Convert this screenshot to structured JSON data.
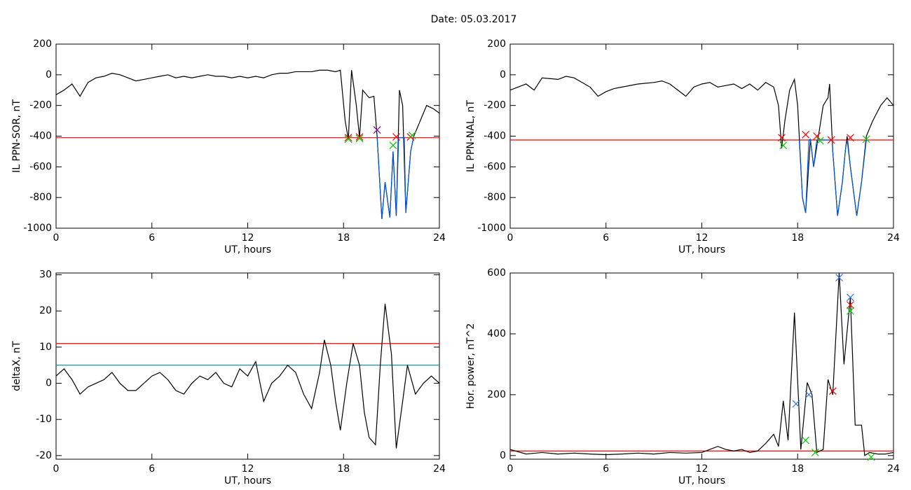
{
  "title": "Date:  05.03.2017",
  "chart_data": [
    {
      "type": "line",
      "xlabel": "UT, hours",
      "ylabel": "IL PPN-SOR, nT",
      "xlim": [
        0,
        24
      ],
      "xticks": [
        0,
        6,
        12,
        18,
        24
      ],
      "ylim": [
        -1000,
        200
      ],
      "yticks": [
        -1000,
        -800,
        -600,
        -400,
        -200,
        0,
        200
      ],
      "series": [
        {
          "color": "#000000",
          "x": [
            0,
            0.5,
            1,
            1.5,
            2,
            2.5,
            3,
            3.5,
            4,
            4.5,
            5,
            5.5,
            6,
            6.5,
            7,
            7.5,
            8,
            8.5,
            9,
            9.5,
            10,
            10.5,
            11,
            11.5,
            12,
            12.5,
            13,
            13.5,
            14,
            14.5,
            15,
            15.5,
            16,
            16.5,
            17,
            17.5,
            17.8,
            18.1,
            18.3,
            18.5,
            18.8,
            19.0,
            19.2,
            19.6,
            19.9,
            20.1,
            20.4,
            20.6,
            20.9,
            21.1,
            21.3,
            21.5,
            21.7,
            21.9,
            22.2,
            22.4,
            22.8,
            23.2,
            23.6,
            24
          ],
          "values": [
            -130,
            -100,
            -60,
            -140,
            -50,
            -20,
            -10,
            10,
            0,
            -20,
            -40,
            -30,
            -20,
            -10,
            0,
            -20,
            -10,
            -20,
            -10,
            0,
            -10,
            -10,
            -20,
            -10,
            -20,
            -10,
            -20,
            0,
            10,
            10,
            20,
            20,
            20,
            30,
            30,
            20,
            30,
            -300,
            -420,
            30,
            -200,
            -410,
            -100,
            -150,
            -140,
            -400,
            -940,
            -700,
            -930,
            -500,
            -920,
            -100,
            -200,
            -900,
            -500,
            -400,
            -300,
            -200,
            -220,
            -250
          ]
        },
        {
          "color": "#0055dd",
          "x": [
            20.1,
            20.4,
            20.6,
            20.9,
            21.1,
            21.3,
            21.45,
            21.8,
            21.9,
            22.2,
            22.4
          ],
          "values": [
            -400,
            -940,
            -700,
            -930,
            -500,
            -920,
            -410,
            -410,
            -900,
            -500,
            -400
          ]
        }
      ],
      "hlines": [
        {
          "value": -410,
          "color": "#ff0000"
        }
      ],
      "markers": [
        {
          "x": 18.3,
          "y": -410,
          "color": "#ff0000"
        },
        {
          "x": 19.0,
          "y": -405,
          "color": "#ff0000"
        },
        {
          "x": 21.3,
          "y": -405,
          "color": "#ff0000"
        },
        {
          "x": 22.2,
          "y": -405,
          "color": "#ff0000"
        },
        {
          "x": 18.3,
          "y": -420,
          "color": "#00cc00"
        },
        {
          "x": 19.0,
          "y": -415,
          "color": "#00cc00"
        },
        {
          "x": 21.1,
          "y": -460,
          "color": "#00cc00"
        },
        {
          "x": 22.3,
          "y": -395,
          "color": "#00cc00"
        },
        {
          "x": 20.1,
          "y": -360,
          "color": "#8800aa"
        }
      ]
    },
    {
      "type": "line",
      "xlabel": "UT, hours",
      "ylabel": "IL PPN-NAL, nT",
      "xlim": [
        0,
        24
      ],
      "xticks": [
        0,
        6,
        12,
        18,
        24
      ],
      "ylim": [
        -1000,
        200
      ],
      "yticks": [
        -1000,
        -800,
        -600,
        -400,
        -200,
        0,
        200
      ],
      "series": [
        {
          "color": "#000000",
          "x": [
            0,
            1,
            1.5,
            2,
            3,
            3.5,
            4,
            4.5,
            5,
            5.5,
            6,
            6.5,
            7,
            8,
            9,
            9.5,
            10,
            10.5,
            11,
            11.5,
            12,
            12.5,
            13,
            13.5,
            14,
            14.5,
            15,
            15.5,
            16,
            16.5,
            16.8,
            17.0,
            17.2,
            17.5,
            17.8,
            18.0,
            18.3,
            18.5,
            18.8,
            19.0,
            19.3,
            19.6,
            19.9,
            20.0,
            20.2,
            20.5,
            20.8,
            21.0,
            21.1,
            21.3,
            21.7,
            22.0,
            22.3,
            22.7,
            23.2,
            23.6,
            24
          ],
          "values": [
            -100,
            -60,
            -100,
            -20,
            -30,
            -10,
            -20,
            -50,
            -80,
            -140,
            -110,
            -90,
            -80,
            -60,
            -50,
            -40,
            -60,
            -100,
            -140,
            -80,
            -60,
            -50,
            -80,
            -70,
            -60,
            -90,
            -60,
            -100,
            -50,
            -80,
            -200,
            -480,
            -300,
            -100,
            -30,
            -200,
            -800,
            -900,
            -420,
            -600,
            -400,
            -200,
            -150,
            -60,
            -500,
            -920,
            -700,
            -480,
            -400,
            -600,
            -920,
            -700,
            -400,
            -300,
            -200,
            -150,
            -200
          ]
        },
        {
          "color": "#0055dd",
          "x": [
            18.1,
            18.3,
            18.5,
            18.7,
            18.8,
            19.0,
            19.2,
            20.15,
            20.2,
            20.5,
            20.8,
            21.0,
            21.1,
            21.3,
            21.7,
            22.0,
            22.3
          ],
          "values": [
            -425,
            -800,
            -900,
            -425,
            -420,
            -600,
            -425,
            -425,
            -500,
            -920,
            -700,
            -480,
            -425,
            -600,
            -920,
            -700,
            -425
          ]
        }
      ],
      "hlines": [
        {
          "value": -425,
          "color": "#ff0000"
        }
      ],
      "markers": [
        {
          "x": 17.0,
          "y": -410,
          "color": "#ff0000"
        },
        {
          "x": 18.5,
          "y": -390,
          "color": "#ff0000"
        },
        {
          "x": 19.2,
          "y": -400,
          "color": "#ff0000"
        },
        {
          "x": 20.1,
          "y": -425,
          "color": "#ff0000"
        },
        {
          "x": 21.3,
          "y": -410,
          "color": "#ff0000"
        },
        {
          "x": 17.1,
          "y": -460,
          "color": "#00cc00"
        },
        {
          "x": 19.4,
          "y": -430,
          "color": "#00cc00"
        },
        {
          "x": 22.3,
          "y": -420,
          "color": "#00cc00"
        }
      ]
    },
    {
      "type": "line",
      "xlabel": "UT, hours",
      "ylabel": "deltaX, nT",
      "xlim": [
        0,
        24
      ],
      "xticks": [
        0,
        6,
        12,
        18,
        24
      ],
      "ylim": [
        -21,
        30.5
      ],
      "yticks": [
        -20,
        -10,
        0,
        10,
        20,
        30
      ],
      "series": [
        {
          "color": "#000000",
          "x": [
            0,
            0.5,
            1,
            1.5,
            2,
            2.5,
            3,
            3.5,
            4,
            4.5,
            5,
            5.5,
            6,
            6.5,
            7,
            7.5,
            8,
            8.5,
            9,
            9.5,
            10,
            10.5,
            11,
            11.5,
            12,
            12.5,
            13,
            13.5,
            14,
            14.5,
            15,
            15.5,
            16,
            16.5,
            16.8,
            17.2,
            17.5,
            17.8,
            18.2,
            18.6,
            19,
            19.3,
            19.6,
            20,
            20.3,
            20.6,
            21,
            21.3,
            21.7,
            22,
            22.5,
            23,
            23.5,
            24
          ],
          "values": [
            2,
            4,
            1,
            -3,
            -1,
            0,
            1,
            3,
            0,
            -2,
            -2,
            0,
            2,
            3,
            1,
            -2,
            -3,
            0,
            2,
            1,
            3,
            0,
            -1,
            4,
            2,
            6,
            -5,
            0,
            2,
            5,
            3,
            -3,
            -7,
            3,
            12,
            5,
            -5,
            -13,
            0,
            11,
            5,
            -8,
            -15,
            -17,
            5,
            22,
            8,
            -18,
            -5,
            5,
            -3,
            0,
            2,
            0
          ]
        }
      ],
      "hlines": [
        {
          "value": 11,
          "color": "#ff0000"
        },
        {
          "value": 5,
          "color": "#008899"
        }
      ],
      "markers": []
    },
    {
      "type": "line",
      "xlabel": "UT, hours",
      "ylabel": "Hor. power, nT^2",
      "xlim": [
        0,
        24
      ],
      "xticks": [
        0,
        6,
        12,
        18,
        24
      ],
      "ylim": [
        -12,
        600
      ],
      "yticks": [
        0,
        200,
        400,
        600
      ],
      "series": [
        {
          "color": "#000000",
          "x": [
            0,
            1,
            2,
            3,
            4,
            5,
            6,
            7,
            8,
            9,
            10,
            11,
            12,
            12.5,
            13,
            13.5,
            14,
            14.5,
            15,
            15.5,
            16,
            16.5,
            16.8,
            17.1,
            17.4,
            17.8,
            18.2,
            18.6,
            18.9,
            19.2,
            19.6,
            19.9,
            20.2,
            20.6,
            20.9,
            21.3,
            21.6,
            22,
            22.2,
            22.5,
            23,
            23.5,
            24
          ],
          "values": [
            20,
            5,
            10,
            5,
            8,
            5,
            3,
            5,
            8,
            5,
            10,
            8,
            10,
            20,
            30,
            20,
            15,
            20,
            10,
            15,
            40,
            70,
            30,
            180,
            50,
            470,
            20,
            240,
            200,
            10,
            20,
            250,
            200,
            600,
            300,
            520,
            100,
            100,
            0,
            10,
            5,
            5,
            10
          ]
        }
      ],
      "hlines": [
        {
          "value": 15,
          "color": "#ff0000"
        }
      ],
      "markers": [
        {
          "x": 17.9,
          "y": 170,
          "color": "#3377dd"
        },
        {
          "x": 18.7,
          "y": 200,
          "color": "#3377dd"
        },
        {
          "x": 20.6,
          "y": 585,
          "color": "#3377dd"
        },
        {
          "x": 21.3,
          "y": 520,
          "color": "#3377dd"
        },
        {
          "x": 20.2,
          "y": 212,
          "color": "#ff0000"
        },
        {
          "x": 21.3,
          "y": 495,
          "color": "#ff0000"
        },
        {
          "x": 18.5,
          "y": 50,
          "color": "#00cc00"
        },
        {
          "x": 19.1,
          "y": 10,
          "color": "#00cc00"
        },
        {
          "x": 21.3,
          "y": 475,
          "color": "#00cc00"
        },
        {
          "x": 22.6,
          "y": -5,
          "color": "#00cc00"
        }
      ]
    }
  ]
}
